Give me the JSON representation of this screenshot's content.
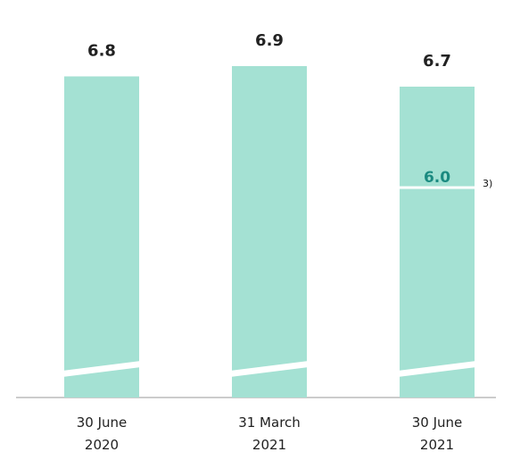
{
  "chart_data": {
    "type": "bar",
    "categories": [
      [
        "30 June",
        "2020"
      ],
      [
        "31 March",
        "2021"
      ],
      [
        "30 June",
        "2021"
      ]
    ],
    "values": [
      6.8,
      6.9,
      6.7
    ],
    "value_labels": [
      "6.8",
      "6.9",
      "6.7"
    ],
    "inner_marker": {
      "category_index": 2,
      "value": 6.0,
      "label": "6.0",
      "footnote": "3)"
    },
    "axis_break": true,
    "title": "",
    "xlabel": "",
    "ylabel": "",
    "grid": false,
    "colors": {
      "bar": "#a4e1d3",
      "inner_label": "#1b8a80",
      "value_label": "#222222",
      "axis": "#999999"
    }
  }
}
